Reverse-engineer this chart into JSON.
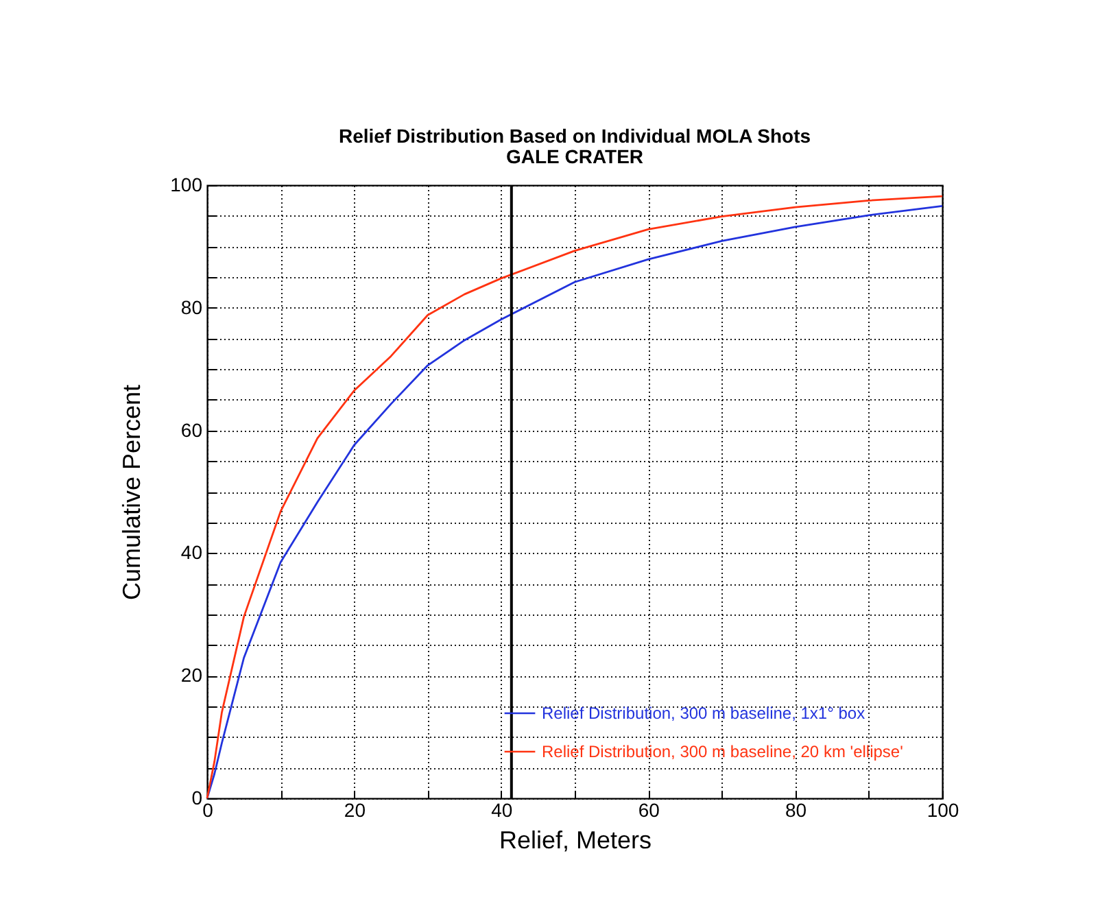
{
  "chart_data": {
    "type": "line",
    "title": "Relief Distribution Based on Individual MOLA Shots",
    "subtitle": "GALE CRATER",
    "xlabel": "Relief, Meters",
    "ylabel": "Cumulative Percent",
    "x": [
      0,
      1,
      2,
      5,
      10,
      15,
      20,
      25,
      30,
      35,
      40,
      50,
      60,
      70,
      80,
      90,
      100
    ],
    "series": [
      {
        "name": "Relief Distribution, 300 m baseline, 1x1° box",
        "color": "#2233dd",
        "values": [
          0,
          4,
          9,
          22.9,
          38.5,
          48.3,
          57.6,
          64.3,
          70.6,
          74.7,
          78.1,
          84.2,
          87.9,
          90.9,
          93.2,
          95.1,
          96.6
        ]
      },
      {
        "name": "Relief Distribution, 300 m baseline, 20 km 'ellipse'",
        "color": "#ff3311",
        "values": [
          0,
          6,
          14,
          29.6,
          46.8,
          58.7,
          66.5,
          72.1,
          78.8,
          82.2,
          84.8,
          89.3,
          92.8,
          94.9,
          96.4,
          97.5,
          98.2
        ]
      }
    ],
    "xlim": [
      0,
      100
    ],
    "ylim": [
      0,
      100
    ],
    "xticks": [
      0,
      {
        "value": 10,
        "label": null
      },
      20,
      {
        "value": 30,
        "label": null
      },
      40,
      {
        "value": 50,
        "label": null
      },
      60,
      {
        "value": 70,
        "label": null
      },
      80,
      {
        "value": 90,
        "label": null
      },
      100
    ],
    "yticks": [
      0,
      {
        "value": 5,
        "label": null
      },
      {
        "value": 10,
        "label": null
      },
      {
        "value": 15,
        "label": null
      },
      20,
      {
        "value": 25,
        "label": null
      },
      {
        "value": 30,
        "label": null
      },
      {
        "value": 35,
        "label": null
      },
      40,
      {
        "value": 45,
        "label": null
      },
      {
        "value": 50,
        "label": null
      },
      {
        "value": 55,
        "label": null
      },
      60,
      {
        "value": 65,
        "label": null
      },
      {
        "value": 70,
        "label": null
      },
      {
        "value": 75,
        "label": null
      },
      80,
      {
        "value": 85,
        "label": null
      },
      {
        "value": 90,
        "label": null
      },
      {
        "value": 95,
        "label": null
      },
      100
    ],
    "ref_lines": [
      {
        "axis": "x",
        "value": 41.4,
        "color": "#000000"
      }
    ],
    "grid": true,
    "legend": "bottom right",
    "line_style": "solid",
    "marker": "none"
  }
}
